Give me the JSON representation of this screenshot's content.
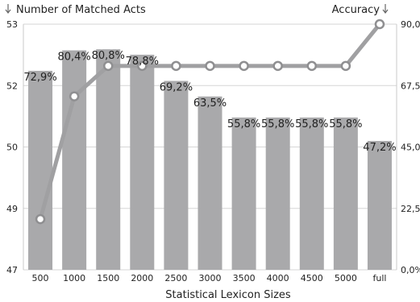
{
  "chart_data": {
    "type": "bar",
    "categories": [
      "500",
      "1000",
      "1500",
      "2000",
      "2500",
      "3000",
      "3500",
      "4000",
      "4500",
      "5000",
      "full"
    ],
    "left_axis_title": "Number of Matched Acts",
    "right_axis_title": "Accuracy",
    "xlabel": "Statistical Lexicon Sizes",
    "left_ticks": [
      "47",
      "49",
      "50",
      "52",
      "53"
    ],
    "left_ylim": [
      47,
      53
    ],
    "right_ticks": [
      "0,0%",
      "22,5%",
      "45,0%",
      "67,5%",
      "90,0%"
    ],
    "right_ylim": [
      0,
      90
    ],
    "grid": true,
    "series": [
      {
        "kind": "bar",
        "axis": "left",
        "color": "#a9a9ab",
        "values": [
          72.9,
          80.4,
          80.8,
          78.8,
          69.2,
          63.5,
          55.8,
          55.8,
          55.8,
          55.8,
          47.2
        ],
        "labels": [
          "72,9%",
          "80,4%",
          "80,8%",
          "78,8%",
          "69,2%",
          "63,5%",
          "55,8%",
          "55,8%",
          "55,8%",
          "55,8%",
          "47,2%"
        ]
      },
      {
        "kind": "line",
        "axis": "left",
        "color": "#a0a0a2",
        "values": [
          48.65,
          51.65,
          52.32,
          52.32,
          52.32,
          52.32,
          52.32,
          52.32,
          52.32,
          52.32,
          53.0
        ]
      }
    ]
  }
}
